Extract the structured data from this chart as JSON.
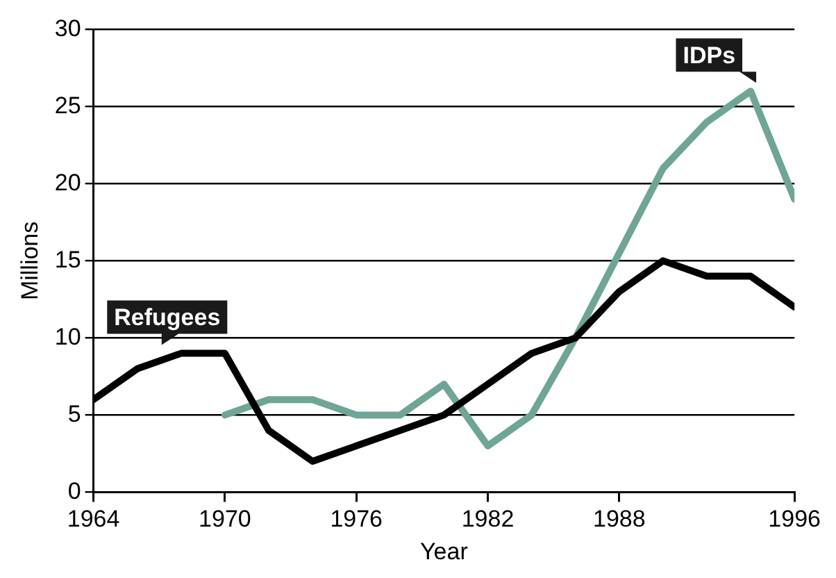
{
  "chart_data": {
    "type": "line",
    "xlabel": "Year",
    "ylabel": "Millions",
    "xlim": [
      1964,
      1996
    ],
    "xticks": [
      1964,
      1970,
      1976,
      1982,
      1988,
      1996
    ],
    "ylim": [
      0,
      30
    ],
    "yticks": [
      0,
      5,
      10,
      15,
      20,
      25,
      30
    ],
    "grid": "y",
    "legend": false,
    "marker": "none",
    "line_style": "solid",
    "series": [
      {
        "name": "Refugees",
        "color": "#000000",
        "x": [
          1964,
          1966,
          1968,
          1970,
          1972,
          1974,
          1976,
          1978,
          1980,
          1982,
          1984,
          1986,
          1988,
          1990,
          1992,
          1994,
          1996
        ],
        "values": [
          6,
          8,
          9,
          9,
          4,
          2,
          3,
          4,
          5,
          7,
          9,
          10,
          13,
          15,
          14,
          14,
          12
        ]
      },
      {
        "name": "IDPs",
        "color": "#6fa596",
        "x": [
          1970,
          1972,
          1974,
          1976,
          1978,
          1980,
          1982,
          1984,
          1986,
          1988,
          1990,
          1992,
          1994,
          1996
        ],
        "values": [
          5,
          6,
          6,
          5,
          5,
          7,
          3,
          5,
          10,
          15.5,
          21,
          24,
          26,
          19
        ]
      }
    ]
  }
}
